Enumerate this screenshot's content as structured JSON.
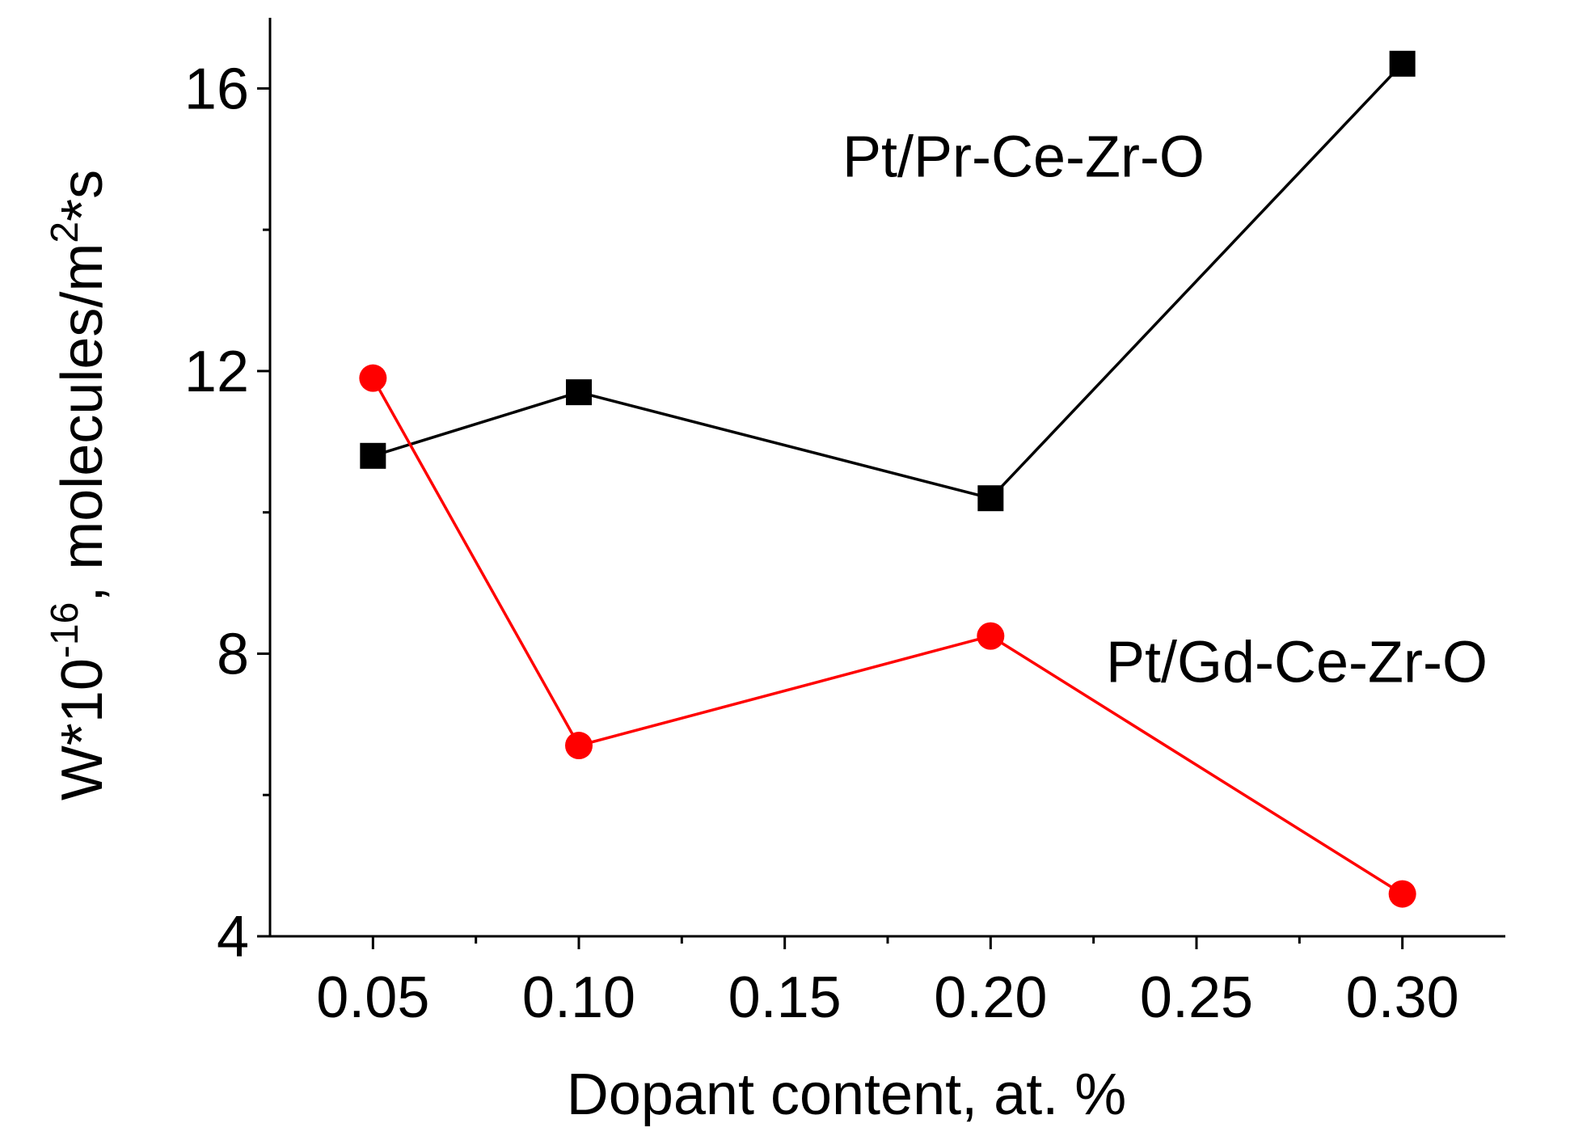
{
  "chart_data": {
    "type": "line",
    "title": "",
    "xlabel": "Dopant content, at. %",
    "ylabel": {
      "base": "W*10",
      "exp1": "-16",
      "mid": ", molecules/m",
      "exp2": "2",
      "tail": "*s"
    },
    "xlim": [
      0.025,
      0.325
    ],
    "ylim": [
      4,
      17
    ],
    "x_ticks": [
      0.05,
      0.1,
      0.15,
      0.2,
      0.25,
      0.3
    ],
    "x_tick_labels": [
      "0.05",
      "0.10",
      "0.15",
      "0.20",
      "0.25",
      "0.30"
    ],
    "x_minor_ticks": [
      0.075,
      0.125,
      0.175,
      0.225,
      0.275
    ],
    "y_ticks": [
      4,
      8,
      12,
      16
    ],
    "y_tick_labels": [
      "4",
      "8",
      "12",
      "16"
    ],
    "y_minor_ticks": [
      6,
      10,
      14
    ],
    "grid": false,
    "series": [
      {
        "name": "Pt/Pr-Ce-Zr-O",
        "color": "#000000",
        "marker": "square",
        "x": [
          0.05,
          0.1,
          0.2,
          0.3
        ],
        "y": [
          10.8,
          11.7,
          10.2,
          16.35
        ]
      },
      {
        "name": "Pt/Gd-Ce-Zr-O",
        "color": "#ff0000",
        "marker": "circle",
        "x": [
          0.05,
          0.1,
          0.2,
          0.3
        ],
        "y": [
          11.9,
          6.7,
          8.25,
          4.6
        ]
      }
    ],
    "annotations": [
      {
        "text": "Pt/Pr-Ce-Zr-O",
        "x": 0.164,
        "y": 14.75
      },
      {
        "text": "Pt/Gd-Ce-Zr-O",
        "x": 0.228,
        "y": 7.6
      }
    ]
  }
}
